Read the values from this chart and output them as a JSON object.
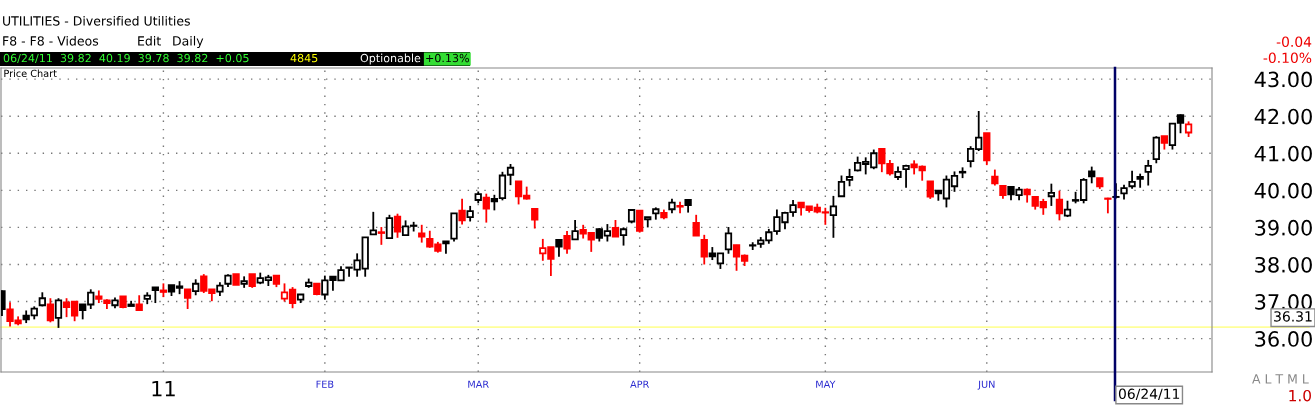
{
  "chart_data": {
    "type": "candlestick",
    "title": "Price Chart",
    "categories": [
      null,
      null,
      null,
      null,
      null,
      null,
      null,
      null,
      null,
      null,
      null,
      null,
      null,
      null,
      null,
      null,
      null,
      null,
      null,
      null,
      "11",
      null,
      null,
      null,
      null,
      null,
      null,
      null,
      null,
      null,
      null,
      null,
      null,
      null,
      null,
      null,
      null,
      null,
      null,
      null,
      "FEB",
      null,
      null,
      null,
      null,
      null,
      null,
      null,
      null,
      null,
      null,
      null,
      null,
      null,
      null,
      null,
      null,
      null,
      null,
      "MAR",
      null,
      null,
      null,
      null,
      null,
      null,
      null,
      null,
      null,
      null,
      null,
      null,
      null,
      null,
      null,
      null,
      null,
      null,
      null,
      "APR",
      null,
      null,
      null,
      null,
      null,
      null,
      null,
      null,
      null,
      null,
      null,
      null,
      null,
      null,
      null,
      null,
      null,
      null,
      null,
      null,
      null,
      null,
      "MAY",
      null,
      null,
      null,
      null,
      null,
      null,
      null,
      null,
      null,
      null,
      null,
      null,
      null,
      null,
      null,
      null,
      null,
      null,
      null,
      "JUN",
      null,
      null,
      null,
      null,
      null,
      null,
      null,
      null,
      null,
      null,
      null,
      null,
      null,
      null,
      null,
      null,
      null,
      null,
      null,
      null,
      null,
      null,
      null,
      null,
      null
    ],
    "ohlc": [
      [
        37.28,
        37.3,
        36.61,
        36.8
      ],
      [
        36.79,
        36.98,
        36.33,
        36.47
      ],
      [
        36.49,
        36.6,
        36.36,
        36.41
      ],
      [
        36.62,
        36.76,
        36.42,
        36.52
      ],
      [
        36.63,
        36.87,
        36.52,
        36.81
      ],
      [
        36.9,
        37.25,
        36.87,
        37.09
      ],
      [
        36.92,
        37.09,
        36.44,
        36.49
      ],
      [
        36.56,
        37.09,
        36.29,
        37.03
      ],
      [
        36.98,
        37.09,
        36.58,
        36.85
      ],
      [
        37.0,
        37.0,
        36.47,
        36.62
      ],
      [
        36.92,
        36.92,
        36.52,
        36.77
      ],
      [
        36.92,
        37.33,
        36.8,
        37.24
      ],
      [
        37.14,
        37.3,
        36.96,
        37.07
      ],
      [
        37.03,
        37.06,
        36.8,
        36.96
      ],
      [
        36.9,
        37.11,
        36.82,
        37.03
      ],
      [
        37.14,
        37.14,
        36.82,
        36.85
      ],
      [
        36.92,
        37.02,
        36.88,
        36.88
      ],
      [
        36.92,
        37.17,
        36.77,
        36.77
      ],
      [
        37.07,
        37.25,
        36.93,
        37.16
      ],
      [
        37.38,
        37.38,
        36.96,
        37.31
      ],
      [
        37.3,
        37.49,
        37.12,
        37.26
      ],
      [
        37.44,
        37.44,
        37.15,
        37.27
      ],
      [
        37.41,
        37.55,
        37.2,
        37.37
      ],
      [
        37.33,
        37.33,
        36.8,
        37.1
      ],
      [
        37.28,
        37.6,
        37.17,
        37.48
      ],
      [
        37.68,
        37.74,
        37.23,
        37.29
      ],
      [
        37.33,
        37.33,
        37.01,
        37.23
      ],
      [
        37.27,
        37.52,
        37.15,
        37.43
      ],
      [
        37.48,
        37.74,
        37.39,
        37.7
      ],
      [
        37.74,
        37.74,
        37.45,
        37.45
      ],
      [
        37.48,
        37.68,
        37.37,
        37.55
      ],
      [
        37.74,
        37.74,
        37.37,
        37.42
      ],
      [
        37.51,
        37.78,
        37.47,
        37.63
      ],
      [
        37.58,
        37.72,
        37.42,
        37.65
      ],
      [
        37.7,
        37.7,
        37.39,
        37.48
      ],
      [
        37.08,
        37.49,
        37.0,
        37.25
      ],
      [
        37.32,
        37.39,
        36.82,
        36.96
      ],
      [
        37.05,
        37.19,
        36.96,
        37.19
      ],
      [
        37.42,
        37.62,
        37.37,
        37.51
      ],
      [
        37.48,
        37.48,
        37.17,
        37.2
      ],
      [
        37.19,
        37.7,
        37.05,
        37.57
      ],
      [
        37.67,
        37.67,
        37.29,
        37.58
      ],
      [
        37.57,
        37.95,
        37.57,
        37.85
      ],
      [
        37.92,
        37.92,
        37.67,
        37.91
      ],
      [
        37.86,
        38.3,
        37.67,
        38.11
      ],
      [
        37.89,
        38.73,
        37.67,
        38.73
      ],
      [
        38.81,
        39.42,
        38.81,
        38.92
      ],
      [
        38.87,
        39.01,
        38.53,
        38.85
      ],
      [
        38.71,
        39.34,
        38.71,
        39.25
      ],
      [
        39.29,
        39.37,
        38.72,
        38.89
      ],
      [
        38.79,
        39.19,
        38.79,
        39.03
      ],
      [
        39.05,
        39.15,
        38.89,
        39.04
      ],
      [
        38.84,
        39.07,
        38.59,
        38.75
      ],
      [
        38.69,
        38.91,
        38.45,
        38.48
      ],
      [
        38.54,
        38.61,
        38.32,
        38.37
      ],
      [
        38.57,
        38.62,
        38.29,
        38.62
      ],
      [
        38.7,
        39.38,
        38.62,
        39.38
      ],
      [
        39.45,
        39.77,
        39.08,
        39.19
      ],
      [
        39.28,
        39.58,
        39.16,
        39.44
      ],
      [
        39.74,
        39.97,
        39.65,
        39.9
      ],
      [
        39.8,
        39.91,
        39.13,
        39.51
      ],
      [
        39.77,
        39.88,
        39.46,
        39.7
      ],
      [
        39.79,
        40.5,
        39.73,
        40.4
      ],
      [
        40.42,
        40.71,
        40.14,
        40.61
      ],
      [
        40.24,
        40.25,
        39.62,
        39.84
      ],
      [
        39.86,
        40.1,
        39.75,
        39.78
      ],
      [
        39.5,
        39.5,
        38.97,
        39.21
      ],
      [
        38.3,
        38.69,
        38.1,
        38.44
      ],
      [
        38.47,
        38.47,
        37.69,
        38.15
      ],
      [
        38.66,
        38.66,
        38.21,
        38.48
      ],
      [
        38.77,
        38.9,
        38.29,
        38.43
      ],
      [
        38.68,
        39.2,
        38.68,
        38.9
      ],
      [
        38.93,
        39.07,
        38.7,
        38.83
      ],
      [
        38.85,
        38.85,
        38.34,
        38.67
      ],
      [
        38.95,
        38.98,
        38.62,
        38.72
      ],
      [
        38.78,
        39.09,
        38.62,
        38.9
      ],
      [
        38.99,
        39.2,
        38.75,
        38.75
      ],
      [
        38.79,
        39.0,
        38.51,
        38.95
      ],
      [
        39.16,
        39.49,
        39.11,
        39.47
      ],
      [
        39.45,
        39.45,
        38.86,
        38.91
      ],
      [
        39.22,
        39.28,
        39.0,
        39.28
      ],
      [
        39.38,
        39.54,
        39.21,
        39.49
      ],
      [
        39.39,
        39.48,
        39.22,
        39.27
      ],
      [
        39.49,
        39.77,
        39.38,
        39.67
      ],
      [
        39.58,
        39.69,
        39.38,
        39.56
      ],
      [
        39.74,
        39.74,
        39.4,
        39.6
      ],
      [
        39.12,
        39.34,
        38.78,
        38.78
      ],
      [
        38.66,
        38.8,
        38.0,
        38.21
      ],
      [
        38.3,
        38.47,
        38.12,
        38.22
      ],
      [
        38.03,
        38.3,
        37.88,
        38.3
      ],
      [
        38.41,
        39.01,
        38.29,
        38.84
      ],
      [
        38.52,
        38.53,
        37.83,
        38.21
      ],
      [
        38.24,
        38.27,
        37.96,
        38.1
      ],
      [
        38.52,
        38.6,
        38.39,
        38.51
      ],
      [
        38.56,
        38.74,
        38.45,
        38.65
      ],
      [
        38.65,
        38.96,
        38.56,
        38.87
      ],
      [
        38.9,
        39.48,
        38.8,
        39.28
      ],
      [
        39.14,
        39.42,
        38.95,
        39.39
      ],
      [
        39.41,
        39.74,
        39.29,
        39.6
      ],
      [
        39.67,
        39.67,
        39.32,
        39.54
      ],
      [
        39.57,
        39.57,
        39.4,
        39.47
      ],
      [
        39.53,
        39.64,
        39.38,
        39.43
      ],
      [
        39.41,
        39.53,
        39.07,
        39.4
      ],
      [
        39.33,
        39.85,
        38.72,
        39.57
      ],
      [
        39.84,
        40.4,
        39.84,
        40.23
      ],
      [
        40.28,
        40.58,
        40.11,
        40.36
      ],
      [
        40.54,
        40.91,
        40.51,
        40.74
      ],
      [
        40.71,
        40.89,
        40.43,
        40.77
      ],
      [
        40.62,
        41.1,
        40.57,
        41.0
      ],
      [
        41.12,
        41.12,
        40.49,
        40.73
      ],
      [
        40.71,
        40.82,
        40.4,
        40.46
      ],
      [
        40.36,
        40.64,
        40.28,
        40.5
      ],
      [
        40.57,
        40.69,
        40.07,
        40.66
      ],
      [
        40.7,
        40.81,
        40.43,
        40.62
      ],
      [
        40.64,
        40.67,
        40.26,
        40.54
      ],
      [
        40.24,
        40.24,
        39.77,
        39.83
      ],
      [
        39.99,
        39.99,
        39.72,
        39.92
      ],
      [
        39.78,
        40.4,
        39.54,
        40.29
      ],
      [
        40.11,
        40.51,
        39.96,
        40.39
      ],
      [
        40.5,
        40.62,
        40.33,
        40.48
      ],
      [
        40.79,
        41.19,
        40.62,
        41.12
      ],
      [
        41.11,
        42.14,
        41.06,
        41.42
      ],
      [
        41.54,
        41.54,
        40.68,
        40.81
      ],
      [
        40.37,
        40.56,
        40.13,
        40.19
      ],
      [
        40.12,
        40.12,
        39.77,
        39.87
      ],
      [
        40.09,
        40.09,
        39.73,
        39.89
      ],
      [
        39.87,
        40.09,
        39.73,
        40.02
      ],
      [
        40.02,
        40.05,
        39.67,
        39.89
      ],
      [
        39.82,
        39.82,
        39.48,
        39.58
      ],
      [
        39.69,
        39.77,
        39.34,
        39.54
      ],
      [
        39.84,
        40.18,
        39.58,
        39.93
      ],
      [
        39.75,
        39.99,
        39.19,
        39.38
      ],
      [
        39.32,
        39.72,
        39.28,
        39.48
      ],
      [
        39.74,
        39.96,
        39.65,
        39.72
      ],
      [
        39.74,
        40.33,
        39.65,
        40.28
      ],
      [
        40.51,
        40.64,
        40.19,
        40.38
      ],
      [
        40.33,
        40.33,
        40.04,
        40.11
      ],
      [
        39.78,
        39.8,
        39.38,
        39.77
      ],
      [
        39.82,
        40.19,
        39.78,
        39.82
      ],
      [
        39.92,
        40.15,
        39.75,
        40.06
      ],
      [
        40.11,
        40.53,
        40.04,
        40.23
      ],
      [
        40.31,
        40.45,
        40.07,
        40.36
      ],
      [
        40.5,
        40.82,
        40.13,
        40.66
      ],
      [
        40.84,
        41.46,
        40.73,
        41.42
      ],
      [
        41.46,
        41.46,
        41.1,
        41.28
      ],
      [
        41.22,
        41.8,
        41.1,
        41.8
      ],
      [
        42.03,
        42.05,
        41.54,
        41.82
      ],
      [
        41.56,
        41.86,
        41.44,
        41.78
      ]
    ],
    "colors": [
      "#000000",
      "#ff0000",
      "#ff0000",
      "#000000",
      "#000000",
      "#000000",
      "#ff0000",
      "#000000",
      "#ff0000",
      "#ff0000",
      "#000000",
      "#000000",
      "#ff0000",
      "#ff0000",
      "#000000",
      "#ff0000",
      "#000000",
      "#ff0000",
      "#000000",
      "#000000",
      "#ff0000",
      "#000000",
      "#000000",
      "#ff0000",
      "#000000",
      "#ff0000",
      "#ff0000",
      "#000000",
      "#000000",
      "#ff0000",
      "#000000",
      "#ff0000",
      "#000000",
      "#000000",
      "#ff0000",
      "#ff0000",
      "#ff0000",
      "#000000",
      "#000000",
      "#ff0000",
      "#000000",
      "#000000",
      "#000000",
      "#000000",
      "#000000",
      "#000000",
      "#000000",
      "#ff0000",
      "#000000",
      "#ff0000",
      "#000000",
      "#000000",
      "#ff0000",
      "#ff0000",
      "#ff0000",
      "#000000",
      "#000000",
      "#ff0000",
      "#000000",
      "#000000",
      "#ff0000",
      "#000000",
      "#000000",
      "#000000",
      "#ff0000",
      "#ff0000",
      "#ff0000",
      "#ff0000",
      "#ff0000",
      "#000000",
      "#ff0000",
      "#000000",
      "#ff0000",
      "#ff0000",
      "#000000",
      "#000000",
      "#ff0000",
      "#000000",
      "#000000",
      "#ff0000",
      "#000000",
      "#000000",
      "#ff0000",
      "#000000",
      "#ff0000",
      "#000000",
      "#ff0000",
      "#ff0000",
      "#000000",
      "#000000",
      "#000000",
      "#ff0000",
      "#ff0000",
      "#000000",
      "#000000",
      "#000000",
      "#000000",
      "#000000",
      "#000000",
      "#ff0000",
      "#ff0000",
      "#ff0000",
      "#ff0000",
      "#000000",
      "#000000",
      "#000000",
      "#000000",
      "#000000",
      "#000000",
      "#ff0000",
      "#ff0000",
      "#000000",
      "#000000",
      "#ff0000",
      "#ff0000",
      "#ff0000",
      "#000000",
      "#000000",
      "#000000",
      "#000000",
      "#000000",
      "#000000",
      "#ff0000",
      "#ff0000",
      "#ff0000",
      "#000000",
      "#000000",
      "#ff0000",
      "#ff0000",
      "#ff0000",
      "#000000",
      "#ff0000",
      "#000000",
      "#000000",
      "#000000",
      "#000000",
      "#ff0000",
      "#ff0000",
      "#000000",
      "#000000",
      "#000000",
      "#000000",
      "#000000",
      "#000000",
      "#ff0000",
      "#000000",
      "#000000",
      "#ff0000"
    ],
    "ylim": [
      35.1,
      43.3
    ],
    "yticks": [
      {
        "value": 36,
        "label": "36.00"
      },
      {
        "value": 37,
        "label": "37.00"
      },
      {
        "value": 38,
        "label": "38.00"
      },
      {
        "value": 39,
        "label": "39.00"
      },
      {
        "value": 40,
        "label": "40.00"
      },
      {
        "value": 41,
        "label": "41.00"
      },
      {
        "value": 42,
        "label": "42.00"
      },
      {
        "value": 43,
        "label": "43.00"
      }
    ],
    "grid": true,
    "ref_lines": [
      {
        "axis": "y",
        "value": 36.31,
        "label": "36.31",
        "color": "#ffff99"
      }
    ],
    "annotations": [
      "UTILITIES - Diversified Utilities",
      "F8 - F8 - Videos",
      "Edit",
      "Daily",
      "06/24/11  39.82  40.19  39.78  39.82  +0.05",
      "4845",
      "Optionable",
      "+0.13%",
      "-0.04",
      "-0.10%",
      "A L T M L",
      "1.0",
      "06/24/11"
    ]
  }
}
